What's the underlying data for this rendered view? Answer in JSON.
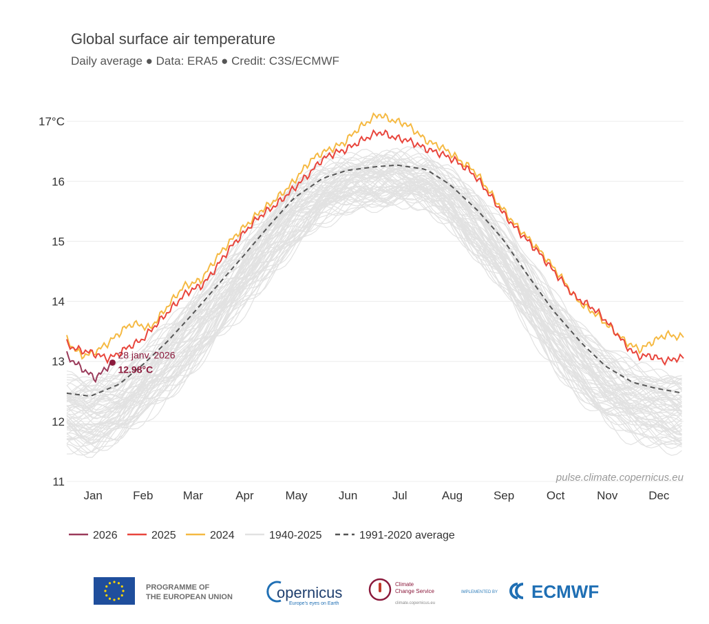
{
  "chart_data": {
    "type": "line",
    "title": "Global surface air temperature",
    "subtitle": "Daily average ● Data: ERA5 ● Credit: C3S/ECMWF",
    "ylabel": "",
    "xlabel": "",
    "y_unit": "°C",
    "ylim": [
      11,
      17.3
    ],
    "yticks": [
      {
        "value": 11,
        "label": "11"
      },
      {
        "value": 12,
        "label": "12"
      },
      {
        "value": 13,
        "label": "13"
      },
      {
        "value": 14,
        "label": "14"
      },
      {
        "value": 15,
        "label": "15"
      },
      {
        "value": 16,
        "label": "16"
      },
      {
        "value": 17,
        "label": "17°C"
      }
    ],
    "months": [
      "Jan",
      "Feb",
      "Mar",
      "Apr",
      "May",
      "Jun",
      "Jul",
      "Aug",
      "Sep",
      "Oct",
      "Nov",
      "Dec"
    ],
    "grid": true,
    "legend_position": "bottom-left",
    "series": [
      {
        "name": "1991-2020 average",
        "color": "#555555",
        "dashed": true,
        "points": [
          [
            1,
            12.47
          ],
          [
            15,
            12.42
          ],
          [
            32,
            12.62
          ],
          [
            46,
            12.95
          ],
          [
            60,
            13.32
          ],
          [
            74,
            13.75
          ],
          [
            91,
            14.3
          ],
          [
            105,
            14.75
          ],
          [
            121,
            15.28
          ],
          [
            135,
            15.72
          ],
          [
            152,
            16.05
          ],
          [
            166,
            16.18
          ],
          [
            182,
            16.24
          ],
          [
            196,
            16.27
          ],
          [
            213,
            16.2
          ],
          [
            227,
            15.95
          ],
          [
            244,
            15.5
          ],
          [
            258,
            15.05
          ],
          [
            274,
            14.4
          ],
          [
            288,
            13.85
          ],
          [
            305,
            13.3
          ],
          [
            319,
            12.92
          ],
          [
            335,
            12.65
          ],
          [
            349,
            12.55
          ],
          [
            365,
            12.47
          ]
        ]
      },
      {
        "name": "2024",
        "color": "#f5b942",
        "dashed": false,
        "points": [
          [
            1,
            13.37
          ],
          [
            5,
            13.22
          ],
          [
            10,
            13.1
          ],
          [
            15,
            13.12
          ],
          [
            20,
            13.2
          ],
          [
            25,
            13.3
          ],
          [
            30,
            13.42
          ],
          [
            35,
            13.55
          ],
          [
            40,
            13.63
          ],
          [
            45,
            13.6
          ],
          [
            50,
            13.55
          ],
          [
            55,
            13.72
          ],
          [
            60,
            13.9
          ],
          [
            65,
            14.08
          ],
          [
            70,
            14.25
          ],
          [
            75,
            14.3
          ],
          [
            80,
            14.35
          ],
          [
            85,
            14.55
          ],
          [
            90,
            14.75
          ],
          [
            95,
            14.92
          ],
          [
            100,
            15.08
          ],
          [
            105,
            15.22
          ],
          [
            110,
            15.35
          ],
          [
            115,
            15.5
          ],
          [
            120,
            15.6
          ],
          [
            125,
            15.72
          ],
          [
            130,
            15.85
          ],
          [
            135,
            16.0
          ],
          [
            140,
            16.18
          ],
          [
            145,
            16.35
          ],
          [
            150,
            16.45
          ],
          [
            155,
            16.52
          ],
          [
            160,
            16.58
          ],
          [
            165,
            16.65
          ],
          [
            170,
            16.8
          ],
          [
            175,
            16.92
          ],
          [
            180,
            17.02
          ],
          [
            185,
            17.12
          ],
          [
            190,
            17.05
          ],
          [
            195,
            17.0
          ],
          [
            200,
            16.97
          ],
          [
            205,
            16.88
          ],
          [
            210,
            16.75
          ],
          [
            215,
            16.65
          ],
          [
            220,
            16.6
          ],
          [
            225,
            16.52
          ],
          [
            230,
            16.42
          ],
          [
            235,
            16.3
          ],
          [
            240,
            16.22
          ],
          [
            245,
            16.05
          ],
          [
            250,
            15.85
          ],
          [
            255,
            15.65
          ],
          [
            260,
            15.48
          ],
          [
            265,
            15.3
          ],
          [
            270,
            15.15
          ],
          [
            275,
            15.0
          ],
          [
            280,
            14.85
          ],
          [
            285,
            14.68
          ],
          [
            290,
            14.5
          ],
          [
            295,
            14.32
          ],
          [
            300,
            14.1
          ],
          [
            305,
            13.95
          ],
          [
            310,
            13.85
          ],
          [
            315,
            13.75
          ],
          [
            320,
            13.6
          ],
          [
            325,
            13.48
          ],
          [
            330,
            13.35
          ],
          [
            335,
            13.25
          ],
          [
            340,
            13.2
          ],
          [
            345,
            13.3
          ],
          [
            350,
            13.38
          ],
          [
            355,
            13.45
          ],
          [
            360,
            13.42
          ],
          [
            365,
            13.4
          ]
        ]
      },
      {
        "name": "2025",
        "color": "#e8453c",
        "dashed": false,
        "points": [
          [
            1,
            13.3
          ],
          [
            5,
            13.22
          ],
          [
            10,
            13.18
          ],
          [
            15,
            13.15
          ],
          [
            20,
            13.1
          ],
          [
            25,
            13.05
          ],
          [
            30,
            13.1
          ],
          [
            35,
            13.2
          ],
          [
            40,
            13.28
          ],
          [
            45,
            13.35
          ],
          [
            50,
            13.5
          ],
          [
            55,
            13.65
          ],
          [
            60,
            13.8
          ],
          [
            65,
            13.95
          ],
          [
            70,
            14.1
          ],
          [
            75,
            14.2
          ],
          [
            80,
            14.25
          ],
          [
            85,
            14.4
          ],
          [
            90,
            14.6
          ],
          [
            95,
            14.8
          ],
          [
            100,
            14.98
          ],
          [
            105,
            15.12
          ],
          [
            110,
            15.28
          ],
          [
            115,
            15.42
          ],
          [
            120,
            15.52
          ],
          [
            125,
            15.62
          ],
          [
            130,
            15.75
          ],
          [
            135,
            15.88
          ],
          [
            140,
            16.02
          ],
          [
            145,
            16.15
          ],
          [
            150,
            16.32
          ],
          [
            155,
            16.42
          ],
          [
            160,
            16.48
          ],
          [
            165,
            16.52
          ],
          [
            170,
            16.6
          ],
          [
            175,
            16.68
          ],
          [
            180,
            16.75
          ],
          [
            185,
            16.82
          ],
          [
            190,
            16.78
          ],
          [
            195,
            16.72
          ],
          [
            200,
            16.7
          ],
          [
            205,
            16.65
          ],
          [
            210,
            16.58
          ],
          [
            215,
            16.52
          ],
          [
            220,
            16.48
          ],
          [
            225,
            16.42
          ],
          [
            230,
            16.35
          ],
          [
            235,
            16.25
          ],
          [
            240,
            16.15
          ],
          [
            245,
            15.98
          ],
          [
            250,
            15.8
          ],
          [
            255,
            15.6
          ],
          [
            260,
            15.42
          ],
          [
            265,
            15.25
          ],
          [
            270,
            15.1
          ],
          [
            275,
            14.95
          ],
          [
            280,
            14.8
          ],
          [
            285,
            14.62
          ],
          [
            290,
            14.45
          ],
          [
            295,
            14.28
          ],
          [
            300,
            14.1
          ],
          [
            305,
            14.0
          ],
          [
            310,
            13.92
          ],
          [
            315,
            13.8
          ],
          [
            320,
            13.65
          ],
          [
            325,
            13.48
          ],
          [
            330,
            13.3
          ],
          [
            335,
            13.15
          ],
          [
            340,
            13.08
          ],
          [
            345,
            13.1
          ],
          [
            350,
            13.05
          ],
          [
            355,
            13.0
          ],
          [
            360,
            13.05
          ],
          [
            365,
            13.05
          ]
        ]
      },
      {
        "name": "2026",
        "color": "#9a3a5a",
        "dashed": false,
        "points": [
          [
            1,
            13.1
          ],
          [
            4,
            13.02
          ],
          [
            7,
            12.95
          ],
          [
            10,
            12.88
          ],
          [
            13,
            12.82
          ],
          [
            16,
            12.75
          ],
          [
            18,
            12.72
          ],
          [
            20,
            12.78
          ],
          [
            22,
            12.82
          ],
          [
            24,
            12.88
          ],
          [
            26,
            12.94
          ],
          [
            28,
            12.98
          ]
        ]
      }
    ],
    "background_series": {
      "name": "1940-2025",
      "color": "#e2e2e2"
    },
    "annotation": {
      "date": "28 janv. 2026",
      "value": "12.98°C",
      "day": 28,
      "y": 12.98
    }
  },
  "legend": [
    {
      "label": "2026",
      "color": "#9a3a5a",
      "style": "solid"
    },
    {
      "label": "2025",
      "color": "#e8453c",
      "style": "solid"
    },
    {
      "label": "2024",
      "color": "#f5b942",
      "style": "solid"
    },
    {
      "label": "1940-2025",
      "color": "#e2e2e2",
      "style": "solid"
    },
    {
      "label": "1991-2020 average",
      "color": "#555555",
      "style": "dashed"
    }
  ],
  "watermark": "pulse.climate.copernicus.eu",
  "footer": {
    "eu_text_1": "PROGRAMME OF",
    "eu_text_2": "THE EUROPEAN UNION",
    "copernicus_name": "opernicus",
    "copernicus_tagline": "Europe's eyes on Earth",
    "c3s_name_1": "Climate",
    "c3s_name_2": "Change Service",
    "c3s_url": "climate.copernicus.eu",
    "implemented_by": "IMPLEMENTED BY",
    "ecmwf": "ECMWF"
  }
}
